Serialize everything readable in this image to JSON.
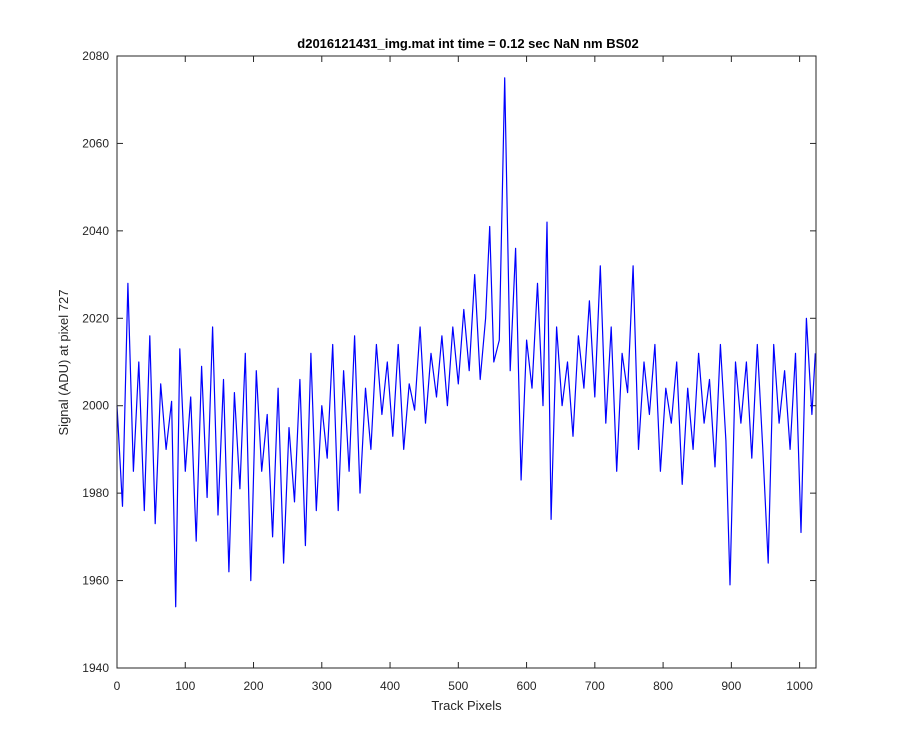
{
  "chart_data": {
    "type": "line",
    "title": "d2016121431_img.mat int time = 0.12 sec  NaN nm BS02",
    "xlabel": "Track Pixels",
    "ylabel": "Signal (ADU) at pixel 727",
    "xlim": [
      0,
      1024
    ],
    "ylim": [
      1940,
      2080
    ],
    "xticks": [
      0,
      100,
      200,
      300,
      400,
      500,
      600,
      700,
      800,
      900,
      1000
    ],
    "yticks": [
      1940,
      1960,
      1980,
      2000,
      2020,
      2040,
      2060,
      2080
    ],
    "grid": false,
    "legend": "none",
    "series": [
      {
        "color": "#0000ff",
        "x": [
          0,
          8,
          16,
          24,
          32,
          40,
          48,
          56,
          64,
          72,
          80,
          86,
          92,
          100,
          108,
          116,
          124,
          132,
          140,
          148,
          156,
          164,
          172,
          180,
          188,
          196,
          204,
          212,
          220,
          228,
          236,
          244,
          252,
          260,
          268,
          276,
          284,
          292,
          300,
          308,
          316,
          324,
          332,
          340,
          348,
          356,
          364,
          372,
          380,
          388,
          396,
          404,
          412,
          420,
          428,
          436,
          444,
          452,
          460,
          468,
          476,
          484,
          492,
          500,
          508,
          516,
          524,
          532,
          540,
          546,
          552,
          560,
          568,
          576,
          584,
          592,
          600,
          608,
          616,
          624,
          630,
          636,
          644,
          652,
          660,
          668,
          676,
          684,
          692,
          700,
          708,
          716,
          724,
          732,
          740,
          748,
          756,
          764,
          772,
          780,
          788,
          796,
          804,
          812,
          820,
          828,
          836,
          844,
          852,
          860,
          868,
          876,
          884,
          892,
          898,
          906,
          914,
          922,
          930,
          938,
          946,
          954,
          962,
          970,
          978,
          986,
          994,
          1002,
          1010,
          1018,
          1023
        ],
        "y": [
          2000,
          1977,
          2028,
          1985,
          2010,
          1976,
          2016,
          1973,
          2005,
          1990,
          2001,
          1954,
          2013,
          1985,
          2002,
          1969,
          2009,
          1979,
          2018,
          1975,
          2006,
          1962,
          2003,
          1981,
          2012,
          1960,
          2008,
          1985,
          1998,
          1970,
          2004,
          1964,
          1995,
          1978,
          2006,
          1968,
          2012,
          1976,
          2000,
          1988,
          2014,
          1976,
          2008,
          1985,
          2016,
          1980,
          2004,
          1990,
          2014,
          1998,
          2010,
          1993,
          2014,
          1990,
          2005,
          1999,
          2018,
          1996,
          2012,
          2002,
          2016,
          2000,
          2018,
          2005,
          2022,
          2008,
          2030,
          2006,
          2020,
          2041,
          2010,
          2015,
          2075,
          2008,
          2036,
          1983,
          2015,
          2004,
          2028,
          2000,
          2042,
          1974,
          2018,
          2000,
          2010,
          1993,
          2016,
          2004,
          2024,
          2002,
          2032,
          1996,
          2018,
          1985,
          2012,
          2003,
          2032,
          1990,
          2010,
          1998,
          2014,
          1985,
          2004,
          1996,
          2010,
          1982,
          2004,
          1990,
          2012,
          1996,
          2006,
          1986,
          2014,
          1992,
          1959,
          2010,
          1996,
          2010,
          1988,
          2014,
          1990,
          1964,
          2014,
          1996,
          2008,
          1990,
          2012,
          1971,
          2020,
          1998,
          2012
        ]
      }
    ]
  }
}
